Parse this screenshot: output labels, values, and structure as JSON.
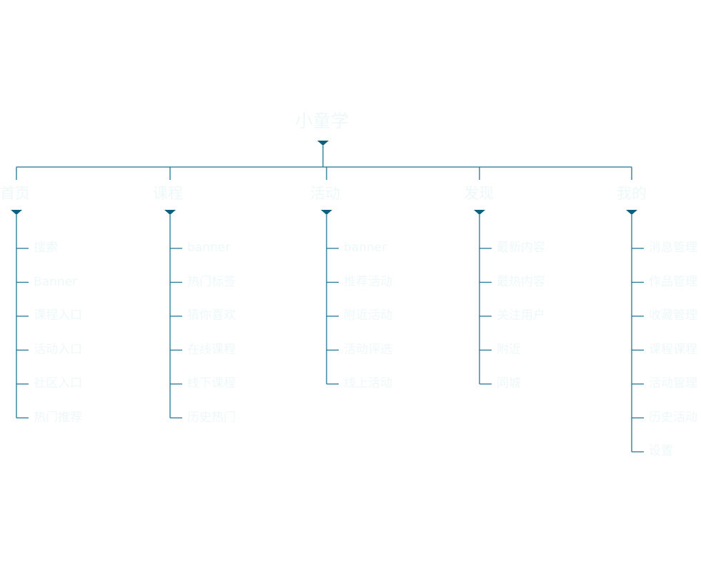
{
  "colors": {
    "line": "#1f7590",
    "marker": "#0d5f7e",
    "text": "#eef8f8"
  },
  "root": {
    "label": "小童学"
  },
  "categories": [
    {
      "label": "首页",
      "items": [
        "搜索",
        "Banner",
        "课程入口",
        "活动入口",
        "社区入口",
        "热门推荐"
      ]
    },
    {
      "label": "课程",
      "items": [
        "banner",
        "热门标签",
        "猜你喜欢",
        "在线课程",
        "线下课程",
        "历史热门"
      ]
    },
    {
      "label": "活动",
      "items": [
        "banner",
        "推荐活动",
        "附近活动",
        "活动评选",
        "线上活动"
      ]
    },
    {
      "label": "发现",
      "items": [
        "最新内容",
        "最热内容",
        "关注用户",
        "附近",
        "同城"
      ]
    },
    {
      "label": "我的",
      "items": [
        "消息管理",
        "作品管理",
        "收藏管理",
        "课程课程",
        "活动管理",
        "历史活动",
        "设置"
      ]
    }
  ]
}
